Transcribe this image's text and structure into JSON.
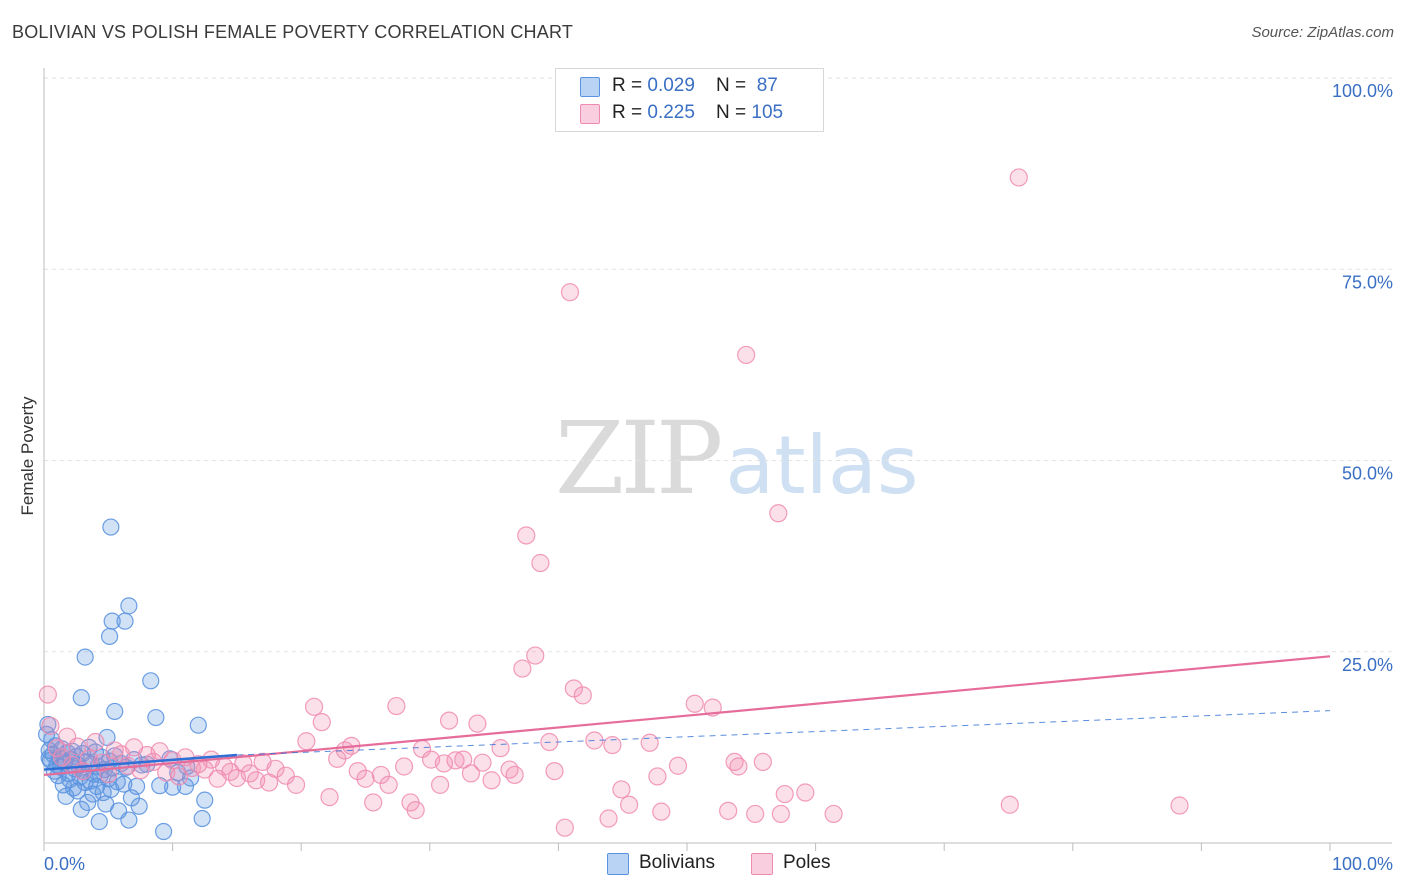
{
  "header": {
    "title": "BOLIVIAN VS POLISH FEMALE POVERTY CORRELATION CHART",
    "source": "Source: ZipAtlas.com"
  },
  "watermark": {
    "part1": "ZIP",
    "part2": "atlas"
  },
  "legend": {
    "rows": [
      {
        "r_label": "R = ",
        "r_value": "0.029",
        "n_label": "N = ",
        "n_value": " 87"
      },
      {
        "r_label": "R = ",
        "r_value": "0.225",
        "n_label": "N = ",
        "n_value": "105"
      }
    ]
  },
  "chart_data": {
    "type": "scatter",
    "title": "BOLIVIAN VS POLISH FEMALE POVERTY CORRELATION CHART",
    "xlabel": "",
    "ylabel": "Female Poverty",
    "xlim": [
      0,
      100
    ],
    "ylim": [
      0,
      100
    ],
    "x_tick_labels": [
      "0.0%",
      "100.0%"
    ],
    "y_ticks": [
      25,
      50,
      75,
      100
    ],
    "y_tick_labels": [
      "25.0%",
      "50.0%",
      "75.0%",
      "100.0%"
    ],
    "colors": {
      "bolivians": "#5b93e0",
      "poles": "#f08bb0",
      "bolivians_line": "#2f6fd6",
      "poles_line": "#e66c9a",
      "tick_text": "#3a6fc4"
    },
    "series": [
      {
        "name": "Bolivians",
        "r": 0.029,
        "n": 87,
        "trend_solid": [
          [
            0,
            9.6
          ],
          [
            15,
            11.5
          ]
        ],
        "trend_dashed": [
          [
            15,
            11.5
          ],
          [
            100,
            17.3
          ]
        ],
        "points": [
          [
            0.2,
            14.2
          ],
          [
            0.4,
            12.1
          ],
          [
            0.5,
            10.8
          ],
          [
            0.6,
            13.5
          ],
          [
            0.7,
            11.6
          ],
          [
            0.8,
            9.4
          ],
          [
            0.9,
            12.7
          ],
          [
            1.0,
            10.2
          ],
          [
            1.1,
            8.8
          ],
          [
            1.2,
            11.1
          ],
          [
            1.3,
            9.9
          ],
          [
            1.4,
            12.3
          ],
          [
            1.5,
            7.6
          ],
          [
            1.6,
            10.5
          ],
          [
            1.7,
            6.1
          ],
          [
            1.8,
            11.8
          ],
          [
            1.9,
            9.1
          ],
          [
            2.0,
            8.3
          ],
          [
            2.1,
            10.9
          ],
          [
            2.2,
            12.0
          ],
          [
            2.3,
            7.2
          ],
          [
            2.4,
            9.7
          ],
          [
            2.5,
            11.3
          ],
          [
            2.6,
            6.8
          ],
          [
            2.7,
            10.1
          ],
          [
            2.8,
            8.6
          ],
          [
            2.9,
            4.4
          ],
          [
            3.0,
            11.7
          ],
          [
            3.1,
            9.3
          ],
          [
            3.2,
            7.9
          ],
          [
            3.3,
            10.6
          ],
          [
            3.4,
            5.3
          ],
          [
            3.5,
            12.5
          ],
          [
            3.6,
            8.1
          ],
          [
            3.7,
            10.3
          ],
          [
            3.8,
            6.4
          ],
          [
            3.9,
            9.0
          ],
          [
            4.0,
            11.9
          ],
          [
            4.1,
            7.4
          ],
          [
            4.2,
            10.0
          ],
          [
            4.3,
            2.8
          ],
          [
            4.4,
            8.9
          ],
          [
            4.5,
            11.2
          ],
          [
            4.6,
            6.6
          ],
          [
            4.7,
            9.6
          ],
          [
            4.8,
            5.1
          ],
          [
            4.9,
            13.8
          ],
          [
            5.0,
            8.4
          ],
          [
            5.1,
            10.7
          ],
          [
            5.2,
            7.0
          ],
          [
            5.3,
            9.8
          ],
          [
            5.5,
            11.4
          ],
          [
            5.7,
            8.0
          ],
          [
            5.8,
            4.2
          ],
          [
            6.0,
            10.4
          ],
          [
            6.2,
            7.7
          ],
          [
            6.4,
            9.9
          ],
          [
            6.6,
            3.0
          ],
          [
            6.8,
            5.9
          ],
          [
            7.0,
            10.9
          ],
          [
            7.2,
            7.4
          ],
          [
            7.4,
            4.8
          ],
          [
            7.6,
            10.2
          ],
          [
            5.1,
            27.0
          ],
          [
            5.3,
            29.0
          ],
          [
            3.2,
            24.3
          ],
          [
            2.9,
            19.0
          ],
          [
            5.2,
            41.3
          ],
          [
            5.5,
            17.2
          ],
          [
            6.3,
            29.0
          ],
          [
            6.6,
            31.0
          ],
          [
            8.0,
            10.3
          ],
          [
            8.3,
            21.2
          ],
          [
            9.0,
            7.5
          ],
          [
            10.0,
            7.3
          ],
          [
            10.4,
            9.2
          ],
          [
            8.7,
            16.4
          ],
          [
            9.3,
            1.5
          ],
          [
            11.0,
            7.4
          ],
          [
            11.4,
            8.5
          ],
          [
            12.0,
            15.4
          ],
          [
            12.5,
            5.6
          ],
          [
            12.3,
            3.2
          ],
          [
            11.1,
            10.0
          ],
          [
            9.8,
            11.0
          ],
          [
            0.3,
            15.5
          ],
          [
            0.4,
            11.1
          ]
        ]
      },
      {
        "name": "Poles",
        "r": 0.225,
        "n": 105,
        "trend_solid": [
          [
            0,
            8.9
          ],
          [
            100,
            24.4
          ]
        ],
        "points": [
          [
            0.3,
            19.4
          ],
          [
            0.5,
            15.3
          ],
          [
            1.0,
            12.4
          ],
          [
            1.4,
            11.2
          ],
          [
            1.8,
            13.9
          ],
          [
            2.2,
            10.2
          ],
          [
            2.6,
            12.6
          ],
          [
            3.0,
            9.4
          ],
          [
            3.5,
            11.0
          ],
          [
            4.0,
            13.2
          ],
          [
            4.5,
            10.5
          ],
          [
            5.0,
            9.0
          ],
          [
            5.5,
            12.1
          ],
          [
            6.0,
            11.6
          ],
          [
            6.5,
            10.1
          ],
          [
            7.0,
            12.5
          ],
          [
            7.5,
            9.5
          ],
          [
            8.0,
            11.5
          ],
          [
            8.5,
            10.6
          ],
          [
            9.0,
            12.0
          ],
          [
            9.5,
            9.2
          ],
          [
            10.0,
            10.8
          ],
          [
            10.5,
            8.7
          ],
          [
            11.0,
            11.2
          ],
          [
            11.5,
            9.8
          ],
          [
            12.0,
            10.3
          ],
          [
            12.5,
            9.6
          ],
          [
            13.0,
            10.9
          ],
          [
            13.5,
            8.4
          ],
          [
            14.0,
            10.0
          ],
          [
            14.5,
            9.3
          ],
          [
            15.0,
            8.5
          ],
          [
            15.5,
            10.4
          ],
          [
            16.0,
            9.1
          ],
          [
            16.5,
            8.2
          ],
          [
            17.0,
            10.6
          ],
          [
            17.5,
            7.9
          ],
          [
            18.0,
            9.7
          ],
          [
            18.8,
            8.8
          ],
          [
            19.6,
            7.6
          ],
          [
            20.4,
            13.3
          ],
          [
            21.0,
            17.8
          ],
          [
            21.6,
            15.8
          ],
          [
            22.2,
            6.0
          ],
          [
            22.8,
            11.0
          ],
          [
            23.4,
            12.1
          ],
          [
            23.9,
            12.7
          ],
          [
            24.4,
            9.4
          ],
          [
            25.0,
            8.4
          ],
          [
            25.6,
            5.3
          ],
          [
            26.2,
            8.9
          ],
          [
            26.8,
            7.6
          ],
          [
            27.4,
            17.9
          ],
          [
            28.0,
            10.0
          ],
          [
            28.5,
            5.3
          ],
          [
            28.9,
            4.3
          ],
          [
            29.4,
            12.3
          ],
          [
            30.1,
            10.9
          ],
          [
            30.8,
            7.6
          ],
          [
            31.1,
            10.4
          ],
          [
            31.5,
            16.0
          ],
          [
            32.0,
            10.8
          ],
          [
            32.6,
            10.9
          ],
          [
            33.2,
            9.1
          ],
          [
            33.7,
            15.6
          ],
          [
            34.1,
            10.5
          ],
          [
            34.8,
            8.2
          ],
          [
            35.5,
            12.4
          ],
          [
            36.2,
            9.6
          ],
          [
            36.6,
            8.9
          ],
          [
            37.2,
            22.8
          ],
          [
            37.5,
            40.2
          ],
          [
            38.2,
            24.5
          ],
          [
            38.6,
            36.6
          ],
          [
            39.3,
            13.2
          ],
          [
            39.7,
            9.4
          ],
          [
            40.5,
            2.0
          ],
          [
            40.9,
            72.0
          ],
          [
            41.2,
            20.2
          ],
          [
            41.9,
            19.3
          ],
          [
            42.8,
            13.4
          ],
          [
            43.9,
            3.2
          ],
          [
            44.2,
            12.8
          ],
          [
            44.9,
            7.0
          ],
          [
            45.5,
            5.0
          ],
          [
            47.1,
            13.1
          ],
          [
            47.7,
            8.7
          ],
          [
            48.0,
            4.1
          ],
          [
            49.3,
            10.1
          ],
          [
            50.6,
            18.2
          ],
          [
            52.0,
            17.7
          ],
          [
            53.2,
            4.2
          ],
          [
            53.7,
            10.6
          ],
          [
            54.0,
            10.0
          ],
          [
            54.6,
            63.8
          ],
          [
            55.3,
            3.8
          ],
          [
            55.9,
            10.6
          ],
          [
            57.1,
            43.1
          ],
          [
            57.3,
            3.8
          ],
          [
            57.6,
            6.4
          ],
          [
            59.2,
            6.6
          ],
          [
            61.4,
            3.8
          ],
          [
            75.8,
            87.0
          ],
          [
            75.1,
            5.0
          ],
          [
            88.3,
            4.9
          ]
        ]
      }
    ]
  },
  "bottom_legend": {
    "items": [
      "Bolivians",
      "Poles"
    ]
  }
}
